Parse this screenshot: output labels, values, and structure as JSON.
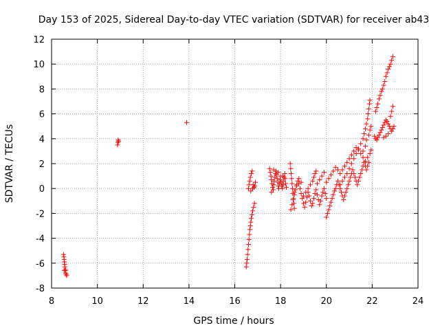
{
  "chart_data": {
    "type": "scatter",
    "title": "Day 153 of 2025, Sidereal Day-to-day VTEC variation (SDTVAR) for receiver ab43",
    "xlabel": "GPS time / hours",
    "ylabel": "SDTVAR / TECUs",
    "xlim": [
      8,
      24
    ],
    "ylim": [
      -8,
      12
    ],
    "xticks": [
      8,
      10,
      12,
      14,
      16,
      18,
      20,
      22,
      24
    ],
    "yticks": [
      -8,
      -6,
      -4,
      -2,
      0,
      2,
      4,
      6,
      8,
      10,
      12
    ],
    "grid": true,
    "marker": "+",
    "series": [
      {
        "color": "#ff0000",
        "points": [
          [
            8.52,
            -5.3
          ],
          [
            8.54,
            -5.5
          ],
          [
            8.55,
            -5.7
          ],
          [
            8.56,
            -5.9
          ],
          [
            8.57,
            -6.1
          ],
          [
            8.58,
            -6.3
          ],
          [
            8.6,
            -6.5
          ],
          [
            8.61,
            -6.6
          ],
          [
            8.62,
            -6.8
          ],
          [
            8.64,
            -6.9
          ],
          [
            8.66,
            -7.0
          ],
          [
            8.56,
            -6.6
          ],
          [
            10.88,
            3.5
          ],
          [
            10.9,
            3.7
          ],
          [
            10.91,
            3.9
          ],
          [
            10.93,
            3.8
          ],
          [
            13.9,
            5.3
          ],
          [
            16.5,
            -6.3
          ],
          [
            16.52,
            -6.0
          ],
          [
            16.54,
            -5.7
          ],
          [
            16.56,
            -5.3
          ],
          [
            16.58,
            -4.9
          ],
          [
            16.6,
            -4.5
          ],
          [
            16.62,
            -4.1
          ],
          [
            16.64,
            -3.7
          ],
          [
            16.66,
            -3.3
          ],
          [
            16.68,
            -3.0
          ],
          [
            16.7,
            -2.7
          ],
          [
            16.72,
            -2.4
          ],
          [
            16.75,
            -2.1
          ],
          [
            16.78,
            -1.8
          ],
          [
            16.82,
            -1.5
          ],
          [
            16.86,
            -1.2
          ],
          [
            16.6,
            0.0
          ],
          [
            16.62,
            0.3
          ],
          [
            16.65,
            0.6
          ],
          [
            16.68,
            0.9
          ],
          [
            16.72,
            1.2
          ],
          [
            16.76,
            1.4
          ],
          [
            16.8,
            0.3
          ],
          [
            16.84,
            0.1
          ],
          [
            16.88,
            0.2
          ],
          [
            16.9,
            0.5
          ],
          [
            16.7,
            -0.2
          ],
          [
            16.78,
            0.0
          ],
          [
            17.52,
            1.6
          ],
          [
            17.55,
            1.3
          ],
          [
            17.58,
            1.0
          ],
          [
            17.6,
            0.7
          ],
          [
            17.62,
            0.4
          ],
          [
            17.65,
            0.1
          ],
          [
            17.68,
            -0.1
          ],
          [
            17.7,
            0.3
          ],
          [
            17.72,
            0.6
          ],
          [
            17.75,
            0.9
          ],
          [
            17.78,
            1.2
          ],
          [
            17.8,
            1.4
          ],
          [
            17.82,
            1.1
          ],
          [
            17.85,
            0.8
          ],
          [
            17.88,
            0.5
          ],
          [
            17.9,
            0.2
          ],
          [
            17.92,
            0.0
          ],
          [
            17.95,
            0.4
          ],
          [
            17.98,
            0.7
          ],
          [
            18.0,
            1.0
          ],
          [
            18.02,
            0.5
          ],
          [
            18.05,
            0.2
          ],
          [
            18.08,
            0.0
          ],
          [
            18.1,
            0.3
          ],
          [
            18.12,
            0.6
          ],
          [
            18.15,
            0.9
          ],
          [
            18.18,
            1.2
          ],
          [
            18.2,
            0.8
          ],
          [
            18.22,
            0.4
          ],
          [
            18.25,
            0.1
          ],
          [
            17.6,
            -0.3
          ],
          [
            17.7,
            1.5
          ],
          [
            17.9,
            1.3
          ],
          [
            18.1,
            1.0
          ],
          [
            18.42,
            2.0
          ],
          [
            18.44,
            1.6
          ],
          [
            18.46,
            1.2
          ],
          [
            18.48,
            0.8
          ],
          [
            18.5,
            0.4
          ],
          [
            18.52,
            0.0
          ],
          [
            18.54,
            -0.4
          ],
          [
            18.56,
            -0.8
          ],
          [
            18.58,
            -1.2
          ],
          [
            18.6,
            -1.6
          ],
          [
            18.45,
            -1.7
          ],
          [
            18.5,
            -1.3
          ],
          [
            18.55,
            -0.9
          ],
          [
            18.6,
            -0.5
          ],
          [
            18.65,
            -0.1
          ],
          [
            18.7,
            0.3
          ],
          [
            18.75,
            0.6
          ],
          [
            18.8,
            0.4
          ],
          [
            18.85,
            0.0
          ],
          [
            18.9,
            -0.4
          ],
          [
            18.95,
            -0.8
          ],
          [
            19.0,
            -1.2
          ],
          [
            19.05,
            -1.5
          ],
          [
            19.1,
            -1.1
          ],
          [
            19.15,
            -0.7
          ],
          [
            19.2,
            -0.3
          ],
          [
            19.25,
            -0.6
          ],
          [
            19.3,
            -1.0
          ],
          [
            19.35,
            -1.4
          ],
          [
            19.4,
            -1.2
          ],
          [
            19.45,
            -0.8
          ],
          [
            19.5,
            -0.4
          ],
          [
            19.55,
            -0.1
          ],
          [
            19.6,
            -0.5
          ],
          [
            19.65,
            -0.9
          ],
          [
            19.7,
            -1.3
          ],
          [
            19.75,
            -1.0
          ],
          [
            19.8,
            -0.6
          ],
          [
            19.85,
            -0.3
          ],
          [
            19.9,
            0.0
          ],
          [
            19.95,
            -0.4
          ],
          [
            20.0,
            -0.8
          ],
          [
            19.6,
            0.4
          ],
          [
            19.7,
            0.7
          ],
          [
            19.8,
            1.0
          ],
          [
            19.9,
            1.3
          ],
          [
            19.55,
            1.4
          ],
          [
            19.5,
            1.2
          ],
          [
            19.45,
            0.9
          ],
          [
            19.4,
            0.6
          ],
          [
            19.3,
            0.3
          ],
          [
            19.2,
            0.0
          ],
          [
            19.1,
            -0.3
          ],
          [
            19.0,
            -0.6
          ],
          [
            18.9,
            0.5
          ],
          [
            18.8,
            0.8
          ],
          [
            18.7,
            0.2
          ],
          [
            18.6,
            -0.3
          ],
          [
            20.0,
            -2.3
          ],
          [
            20.05,
            -2.0
          ],
          [
            20.1,
            -1.7
          ],
          [
            20.15,
            -1.4
          ],
          [
            20.2,
            -1.1
          ],
          [
            20.25,
            -0.8
          ],
          [
            20.3,
            -0.5
          ],
          [
            20.35,
            -0.2
          ],
          [
            20.4,
            0.0
          ],
          [
            20.45,
            0.3
          ],
          [
            20.5,
            0.6
          ],
          [
            20.55,
            0.3
          ],
          [
            20.6,
            0.0
          ],
          [
            20.65,
            -0.3
          ],
          [
            20.7,
            -0.6
          ],
          [
            20.75,
            -0.9
          ],
          [
            20.8,
            -0.6
          ],
          [
            20.85,
            -0.3
          ],
          [
            20.9,
            0.0
          ],
          [
            20.95,
            0.3
          ],
          [
            21.0,
            0.6
          ],
          [
            21.05,
            0.9
          ],
          [
            21.1,
            1.2
          ],
          [
            21.15,
            1.5
          ],
          [
            21.2,
            1.2
          ],
          [
            21.25,
            0.9
          ],
          [
            21.3,
            0.6
          ],
          [
            21.35,
            0.3
          ],
          [
            21.4,
            0.6
          ],
          [
            21.45,
            0.9
          ],
          [
            21.5,
            1.2
          ],
          [
            21.55,
            1.5
          ],
          [
            21.6,
            1.8
          ],
          [
            21.65,
            2.1
          ],
          [
            21.7,
            1.8
          ],
          [
            21.75,
            1.5
          ],
          [
            21.8,
            1.8
          ],
          [
            21.85,
            2.1
          ],
          [
            20.0,
            0.5
          ],
          [
            20.1,
            0.8
          ],
          [
            20.2,
            1.1
          ],
          [
            20.3,
            1.4
          ],
          [
            20.4,
            1.7
          ],
          [
            20.5,
            1.5
          ],
          [
            20.6,
            1.2
          ],
          [
            20.7,
            1.5
          ],
          [
            20.8,
            1.8
          ],
          [
            20.9,
            2.1
          ],
          [
            21.0,
            2.4
          ],
          [
            21.1,
            2.7
          ],
          [
            21.2,
            3.0
          ],
          [
            21.3,
            3.3
          ],
          [
            21.4,
            3.1
          ],
          [
            21.5,
            2.8
          ],
          [
            21.6,
            2.5
          ],
          [
            21.7,
            2.2
          ],
          [
            21.8,
            2.5
          ],
          [
            21.9,
            2.8
          ],
          [
            21.95,
            3.1
          ],
          [
            20.6,
            0.3
          ],
          [
            20.7,
            0.6
          ],
          [
            20.8,
            0.9
          ],
          [
            20.9,
            1.2
          ],
          [
            21.0,
            1.6
          ],
          [
            21.1,
            2.0
          ],
          [
            21.2,
            2.4
          ],
          [
            21.3,
            2.8
          ],
          [
            21.4,
            3.2
          ],
          [
            21.5,
            3.6
          ],
          [
            21.6,
            4.0
          ],
          [
            21.65,
            4.4
          ],
          [
            21.7,
            4.8
          ],
          [
            21.75,
            5.2
          ],
          [
            21.8,
            5.6
          ],
          [
            21.82,
            6.0
          ],
          [
            21.85,
            6.4
          ],
          [
            21.88,
            6.8
          ],
          [
            21.9,
            7.1
          ],
          [
            21.75,
            3.9
          ],
          [
            21.85,
            4.3
          ],
          [
            21.9,
            4.7
          ],
          [
            21.95,
            5.0
          ],
          [
            21.7,
            3.4
          ],
          [
            21.6,
            3.0
          ],
          [
            22.15,
            6.2
          ],
          [
            22.2,
            6.5
          ],
          [
            22.25,
            6.8
          ],
          [
            22.3,
            7.2
          ],
          [
            22.35,
            7.5
          ],
          [
            22.4,
            7.8
          ],
          [
            22.45,
            8.0
          ],
          [
            22.5,
            8.3
          ],
          [
            22.55,
            8.6
          ],
          [
            22.6,
            9.0
          ],
          [
            22.65,
            9.3
          ],
          [
            22.7,
            9.6
          ],
          [
            22.75,
            9.8
          ],
          [
            22.8,
            10.0
          ],
          [
            22.85,
            10.3
          ],
          [
            22.9,
            10.6
          ],
          [
            22.1,
            4.2
          ],
          [
            22.15,
            4.0
          ],
          [
            22.2,
            3.9
          ],
          [
            22.25,
            4.1
          ],
          [
            22.3,
            4.3
          ],
          [
            22.35,
            4.5
          ],
          [
            22.4,
            4.7
          ],
          [
            22.45,
            4.9
          ],
          [
            22.5,
            5.1
          ],
          [
            22.55,
            5.3
          ],
          [
            22.6,
            5.5
          ],
          [
            22.65,
            5.4
          ],
          [
            22.7,
            5.2
          ],
          [
            22.75,
            5.0
          ],
          [
            22.8,
            4.8
          ],
          [
            22.85,
            4.6
          ],
          [
            22.9,
            4.8
          ],
          [
            22.95,
            5.0
          ],
          [
            22.8,
            5.8
          ],
          [
            22.85,
            6.2
          ],
          [
            22.9,
            6.6
          ],
          [
            22.7,
            4.4
          ],
          [
            22.6,
            4.2
          ],
          [
            22.5,
            4.1
          ]
        ]
      }
    ]
  }
}
